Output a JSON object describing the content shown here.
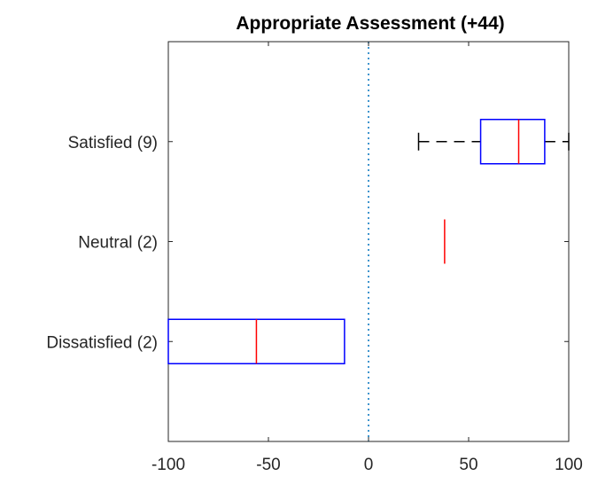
{
  "chart_data": {
    "type": "boxplot",
    "orientation": "horizontal",
    "title": "Appropriate Assessment (+44)",
    "xlabel": "",
    "ylabel": "",
    "xlim": [
      -100,
      100
    ],
    "x_ticks": [
      -100,
      -50,
      0,
      50,
      100
    ],
    "x_tick_labels": [
      "-100",
      "-50",
      "0",
      "50",
      "100"
    ],
    "reference_line": {
      "x": 0,
      "style": "dotted",
      "color": "#0072bd"
    },
    "categories": [
      "Satisfied (9)",
      "Neutral (2)",
      "Dissatisfied (2)"
    ],
    "boxes": [
      {
        "category": "Satisfied (9)",
        "q1": 56,
        "median": 75,
        "q3": 88,
        "whisker_low": 25,
        "whisker_high": 100
      },
      {
        "category": "Neutral (2)",
        "q1": 38,
        "median": 38,
        "q3": 38,
        "whisker_low": 38,
        "whisker_high": 38
      },
      {
        "category": "Dissatisfied (2)",
        "q1": -100,
        "median": -56,
        "q3": -12,
        "whisker_low": -100,
        "whisker_high": -12
      }
    ],
    "grid": false,
    "legend": "none",
    "colors": {
      "box": "#0000ff",
      "median": "#ff0000",
      "whisker": "#000000",
      "reference": "#0072bd"
    }
  }
}
